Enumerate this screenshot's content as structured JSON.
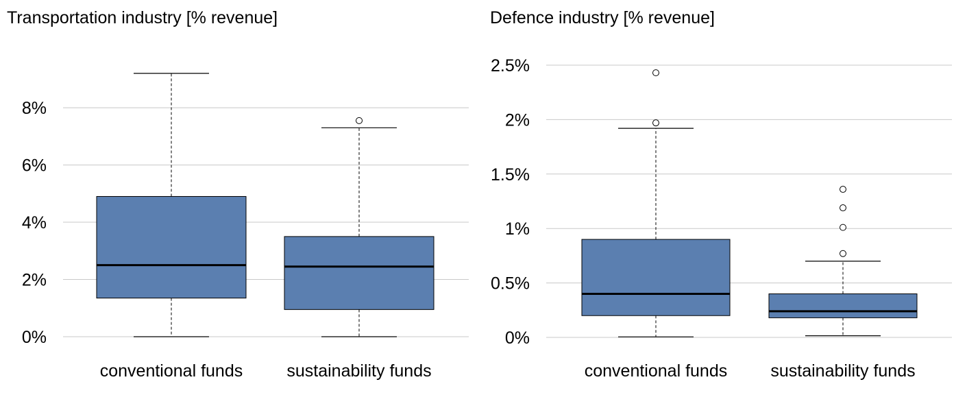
{
  "chart_data": [
    {
      "type": "boxplot",
      "title": "Transportation industry [% revenue]",
      "categories": [
        "conventional funds",
        "sustainability funds"
      ],
      "ylim": [
        0,
        9.2
      ],
      "yticks": [
        0,
        2,
        4,
        6,
        8
      ],
      "ytick_labels": [
        "0%",
        "2%",
        "4%",
        "6%",
        "8%"
      ],
      "grid": true,
      "box_color": "#5b7fb0",
      "boxes": [
        {
          "name": "conventional funds",
          "whisker_low": 0.0,
          "q1": 1.35,
          "median": 2.5,
          "q3": 4.9,
          "whisker_high": 9.2,
          "outliers": []
        },
        {
          "name": "sustainability funds",
          "whisker_low": 0.0,
          "q1": 0.95,
          "median": 2.45,
          "q3": 3.5,
          "whisker_high": 7.3,
          "outliers": [
            7.55
          ]
        }
      ]
    },
    {
      "type": "boxplot",
      "title": "Defence industry [% revenue]",
      "categories": [
        "conventional funds",
        "sustainability funds"
      ],
      "ylim": [
        0,
        2.5
      ],
      "yticks": [
        0,
        0.5,
        1,
        1.5,
        2,
        2.5
      ],
      "ytick_labels": [
        "0%",
        "0.5%",
        "1%",
        "1.5%",
        "2%",
        "2.5%"
      ],
      "grid": true,
      "box_color": "#5b7fb0",
      "boxes": [
        {
          "name": "conventional funds",
          "whisker_low": 0.005,
          "q1": 0.2,
          "median": 0.4,
          "q3": 0.9,
          "whisker_high": 1.92,
          "outliers": [
            1.97,
            2.43
          ]
        },
        {
          "name": "sustainability funds",
          "whisker_low": 0.015,
          "q1": 0.18,
          "median": 0.24,
          "q3": 0.4,
          "whisker_high": 0.7,
          "outliers": [
            0.77,
            1.01,
            1.19,
            1.36
          ]
        }
      ]
    }
  ]
}
